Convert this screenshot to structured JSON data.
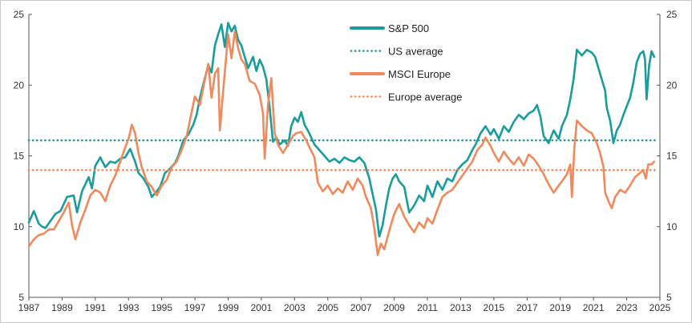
{
  "chart_data": {
    "type": "line",
    "title": "",
    "xlabel": "",
    "ylabel": "",
    "xlim": [
      1987,
      2025
    ],
    "ylim": [
      5,
      25
    ],
    "y_ticks": [
      "5",
      "10",
      "15",
      "20",
      "25"
    ],
    "x_ticks": [
      "1987",
      "1989",
      "1991",
      "1993",
      "1995",
      "1997",
      "1999",
      "2001",
      "2003",
      "2005",
      "2007",
      "2009",
      "2011",
      "2013",
      "2015",
      "2017",
      "2019",
      "2021",
      "2023",
      "2025"
    ],
    "grid": false,
    "legend_position": "top-center",
    "series": [
      {
        "name": "S&P 500",
        "color": "#1a9c9c",
        "style": "solid",
        "points": [
          [
            1987.0,
            10.3
          ],
          [
            1987.3,
            11.1
          ],
          [
            1987.6,
            10.2
          ],
          [
            1987.8,
            10.0
          ],
          [
            1988.0,
            9.9
          ],
          [
            1988.3,
            10.4
          ],
          [
            1988.6,
            10.9
          ],
          [
            1988.9,
            11.1
          ],
          [
            1989.3,
            12.1
          ],
          [
            1989.7,
            12.2
          ],
          [
            1989.9,
            11.0
          ],
          [
            1990.2,
            12.5
          ],
          [
            1990.6,
            13.5
          ],
          [
            1990.8,
            12.7
          ],
          [
            1991.0,
            14.3
          ],
          [
            1991.3,
            14.9
          ],
          [
            1991.6,
            14.2
          ],
          [
            1991.9,
            14.6
          ],
          [
            1992.2,
            14.5
          ],
          [
            1992.5,
            14.8
          ],
          [
            1992.8,
            14.9
          ],
          [
            1993.1,
            15.5
          ],
          [
            1993.4,
            14.6
          ],
          [
            1993.6,
            13.8
          ],
          [
            1993.9,
            13.4
          ],
          [
            1994.2,
            12.8
          ],
          [
            1994.4,
            12.1
          ],
          [
            1994.7,
            12.5
          ],
          [
            1994.9,
            12.8
          ],
          [
            1995.2,
            13.8
          ],
          [
            1995.5,
            14.1
          ],
          [
            1995.8,
            14.5
          ],
          [
            1996.0,
            15.0
          ],
          [
            1996.3,
            16.1
          ],
          [
            1996.6,
            16.5
          ],
          [
            1996.9,
            17.2
          ],
          [
            1997.1,
            17.9
          ],
          [
            1997.3,
            19.1
          ],
          [
            1997.6,
            20.5
          ],
          [
            1997.8,
            21.4
          ],
          [
            1998.0,
            20.9
          ],
          [
            1998.2,
            22.8
          ],
          [
            1998.4,
            23.6
          ],
          [
            1998.6,
            24.3
          ],
          [
            1998.8,
            22.7
          ],
          [
            1999.0,
            24.4
          ],
          [
            1999.2,
            23.8
          ],
          [
            1999.4,
            24.2
          ],
          [
            1999.6,
            23.2
          ],
          [
            1999.8,
            22.8
          ],
          [
            2000.0,
            22.0
          ],
          [
            2000.2,
            21.2
          ],
          [
            2000.5,
            22.0
          ],
          [
            2000.7,
            21.0
          ],
          [
            2000.9,
            21.8
          ],
          [
            2001.1,
            21.3
          ],
          [
            2001.3,
            20.4
          ],
          [
            2001.5,
            18.4
          ],
          [
            2001.7,
            16.0
          ],
          [
            2001.9,
            16.3
          ],
          [
            2002.1,
            15.8
          ],
          [
            2002.4,
            16.1
          ],
          [
            2002.6,
            15.7
          ],
          [
            2002.8,
            17.1
          ],
          [
            2003.0,
            17.7
          ],
          [
            2003.2,
            17.4
          ],
          [
            2003.4,
            18.1
          ],
          [
            2003.6,
            17.2
          ],
          [
            2003.8,
            16.8
          ],
          [
            2004.0,
            16.3
          ],
          [
            2004.2,
            15.8
          ],
          [
            2004.5,
            15.4
          ],
          [
            2004.8,
            15.0
          ],
          [
            2005.1,
            14.6
          ],
          [
            2005.4,
            14.8
          ],
          [
            2005.7,
            14.5
          ],
          [
            2006.0,
            14.9
          ],
          [
            2006.3,
            14.7
          ],
          [
            2006.6,
            14.6
          ],
          [
            2006.9,
            14.9
          ],
          [
            2007.2,
            14.5
          ],
          [
            2007.5,
            13.4
          ],
          [
            2007.7,
            12.3
          ],
          [
            2007.9,
            11.2
          ],
          [
            2008.1,
            9.3
          ],
          [
            2008.3,
            10.1
          ],
          [
            2008.5,
            11.5
          ],
          [
            2008.7,
            12.7
          ],
          [
            2008.9,
            13.4
          ],
          [
            2009.1,
            13.7
          ],
          [
            2009.3,
            13.2
          ],
          [
            2009.6,
            12.8
          ],
          [
            2009.9,
            11.0
          ],
          [
            2010.2,
            11.5
          ],
          [
            2010.5,
            12.2
          ],
          [
            2010.8,
            11.8
          ],
          [
            2011.0,
            12.9
          ],
          [
            2011.3,
            12.1
          ],
          [
            2011.6,
            13.2
          ],
          [
            2011.9,
            12.6
          ],
          [
            2012.2,
            13.4
          ],
          [
            2012.5,
            13.2
          ],
          [
            2012.8,
            14.0
          ],
          [
            2013.1,
            14.4
          ],
          [
            2013.4,
            14.7
          ],
          [
            2013.7,
            15.4
          ],
          [
            2013.9,
            15.8
          ],
          [
            2014.2,
            16.6
          ],
          [
            2014.5,
            17.1
          ],
          [
            2014.8,
            16.5
          ],
          [
            2015.0,
            16.9
          ],
          [
            2015.3,
            16.2
          ],
          [
            2015.6,
            17.1
          ],
          [
            2015.9,
            16.7
          ],
          [
            2016.2,
            17.4
          ],
          [
            2016.5,
            17.9
          ],
          [
            2016.8,
            17.6
          ],
          [
            2017.1,
            18.0
          ],
          [
            2017.4,
            18.2
          ],
          [
            2017.6,
            18.6
          ],
          [
            2017.8,
            17.8
          ],
          [
            2018.0,
            16.4
          ],
          [
            2018.3,
            15.9
          ],
          [
            2018.6,
            16.8
          ],
          [
            2018.9,
            16.2
          ],
          [
            2019.1,
            17.1
          ],
          [
            2019.4,
            17.9
          ],
          [
            2019.6,
            19.0
          ],
          [
            2019.8,
            20.4
          ],
          [
            2020.0,
            22.5
          ],
          [
            2020.3,
            22.1
          ],
          [
            2020.6,
            22.5
          ],
          [
            2020.9,
            22.3
          ],
          [
            2021.1,
            22.0
          ],
          [
            2021.4,
            20.8
          ],
          [
            2021.7,
            19.6
          ],
          [
            2021.8,
            18.4
          ],
          [
            2022.0,
            17.5
          ],
          [
            2022.2,
            15.9
          ],
          [
            2022.4,
            16.8
          ],
          [
            2022.6,
            17.2
          ],
          [
            2022.8,
            17.9
          ],
          [
            2023.0,
            18.5
          ],
          [
            2023.2,
            19.1
          ],
          [
            2023.4,
            20.2
          ],
          [
            2023.6,
            21.6
          ],
          [
            2023.8,
            22.2
          ],
          [
            2024.0,
            22.4
          ],
          [
            2024.1,
            21.8
          ],
          [
            2024.2,
            19.0
          ],
          [
            2024.35,
            21.4
          ],
          [
            2024.5,
            22.4
          ],
          [
            2024.65,
            22.0
          ]
        ]
      },
      {
        "name": "US average",
        "color": "#1a9c9c",
        "style": "dotted",
        "points": [
          [
            1987.0,
            16.1
          ],
          [
            2024.7,
            16.1
          ]
        ]
      },
      {
        "name": "MSCI Europe",
        "color": "#f08a5d",
        "style": "solid",
        "points": [
          [
            1987.0,
            8.6
          ],
          [
            1987.3,
            9.1
          ],
          [
            1987.6,
            9.4
          ],
          [
            1987.9,
            9.5
          ],
          [
            1988.2,
            9.8
          ],
          [
            1988.5,
            9.8
          ],
          [
            1988.8,
            10.4
          ],
          [
            1989.1,
            11.0
          ],
          [
            1989.4,
            11.7
          ],
          [
            1989.6,
            10.1
          ],
          [
            1989.8,
            9.1
          ],
          [
            1990.1,
            10.3
          ],
          [
            1990.4,
            11.2
          ],
          [
            1990.7,
            12.2
          ],
          [
            1991.0,
            12.6
          ],
          [
            1991.3,
            12.4
          ],
          [
            1991.6,
            11.8
          ],
          [
            1991.9,
            12.9
          ],
          [
            1992.2,
            13.6
          ],
          [
            1992.5,
            14.6
          ],
          [
            1992.8,
            15.6
          ],
          [
            1993.0,
            16.2
          ],
          [
            1993.2,
            17.2
          ],
          [
            1993.4,
            16.6
          ],
          [
            1993.6,
            15.2
          ],
          [
            1993.8,
            14.2
          ],
          [
            1994.1,
            13.2
          ],
          [
            1994.4,
            12.8
          ],
          [
            1994.7,
            12.2
          ],
          [
            1995.0,
            12.9
          ],
          [
            1995.3,
            13.3
          ],
          [
            1995.6,
            14.2
          ],
          [
            1995.9,
            14.6
          ],
          [
            1996.2,
            15.4
          ],
          [
            1996.5,
            16.4
          ],
          [
            1996.8,
            18.1
          ],
          [
            1997.0,
            19.2
          ],
          [
            1997.3,
            18.6
          ],
          [
            1997.6,
            20.4
          ],
          [
            1997.8,
            21.5
          ],
          [
            1998.0,
            19.1
          ],
          [
            1998.2,
            20.8
          ],
          [
            1998.4,
            21.2
          ],
          [
            1998.5,
            16.8
          ],
          [
            1998.7,
            19.6
          ],
          [
            1999.0,
            23.6
          ],
          [
            1999.2,
            21.9
          ],
          [
            1999.4,
            23.8
          ],
          [
            1999.6,
            22.6
          ],
          [
            1999.8,
            21.8
          ],
          [
            2000.0,
            21.5
          ],
          [
            2000.3,
            20.3
          ],
          [
            2000.6,
            20.1
          ],
          [
            2000.9,
            19.3
          ],
          [
            2001.1,
            18.0
          ],
          [
            2001.2,
            14.8
          ],
          [
            2001.4,
            18.6
          ],
          [
            2001.6,
            20.5
          ],
          [
            2001.8,
            16.6
          ],
          [
            2002.0,
            15.8
          ],
          [
            2002.3,
            15.2
          ],
          [
            2002.6,
            15.8
          ],
          [
            2002.9,
            16.4
          ],
          [
            2003.1,
            16.6
          ],
          [
            2003.4,
            16.7
          ],
          [
            2003.7,
            16.1
          ],
          [
            2003.9,
            15.6
          ],
          [
            2004.2,
            14.9
          ],
          [
            2004.4,
            13.1
          ],
          [
            2004.7,
            12.5
          ],
          [
            2005.0,
            12.9
          ],
          [
            2005.3,
            12.3
          ],
          [
            2005.6,
            12.7
          ],
          [
            2005.9,
            12.4
          ],
          [
            2006.2,
            13.2
          ],
          [
            2006.5,
            12.6
          ],
          [
            2006.8,
            13.4
          ],
          [
            2007.1,
            12.9
          ],
          [
            2007.3,
            12.1
          ],
          [
            2007.6,
            11.3
          ],
          [
            2007.8,
            9.9
          ],
          [
            2008.0,
            8.0
          ],
          [
            2008.2,
            8.8
          ],
          [
            2008.4,
            8.4
          ],
          [
            2008.7,
            9.7
          ],
          [
            2009.0,
            10.9
          ],
          [
            2009.3,
            11.6
          ],
          [
            2009.6,
            10.7
          ],
          [
            2009.9,
            10.1
          ],
          [
            2010.2,
            9.6
          ],
          [
            2010.5,
            10.3
          ],
          [
            2010.8,
            9.9
          ],
          [
            2011.0,
            10.6
          ],
          [
            2011.3,
            10.2
          ],
          [
            2011.6,
            11.2
          ],
          [
            2011.9,
            12.1
          ],
          [
            2012.2,
            12.4
          ],
          [
            2012.5,
            12.6
          ],
          [
            2012.8,
            13.1
          ],
          [
            2013.1,
            13.6
          ],
          [
            2013.4,
            14.1
          ],
          [
            2013.7,
            14.6
          ],
          [
            2014.0,
            15.4
          ],
          [
            2014.3,
            15.8
          ],
          [
            2014.5,
            16.3
          ],
          [
            2014.8,
            15.7
          ],
          [
            2015.0,
            15.2
          ],
          [
            2015.3,
            14.6
          ],
          [
            2015.6,
            15.3
          ],
          [
            2015.9,
            14.8
          ],
          [
            2016.2,
            14.4
          ],
          [
            2016.5,
            14.9
          ],
          [
            2016.8,
            14.3
          ],
          [
            2017.1,
            15.1
          ],
          [
            2017.4,
            14.8
          ],
          [
            2017.7,
            14.3
          ],
          [
            2018.0,
            13.7
          ],
          [
            2018.3,
            13.0
          ],
          [
            2018.6,
            12.4
          ],
          [
            2018.9,
            12.9
          ],
          [
            2019.1,
            13.2
          ],
          [
            2019.4,
            13.7
          ],
          [
            2019.6,
            14.4
          ],
          [
            2019.7,
            12.1
          ],
          [
            2019.85,
            15.6
          ],
          [
            2020.0,
            17.5
          ],
          [
            2020.3,
            17.1
          ],
          [
            2020.6,
            16.8
          ],
          [
            2020.9,
            16.6
          ],
          [
            2021.2,
            15.9
          ],
          [
            2021.4,
            15.2
          ],
          [
            2021.6,
            14.2
          ],
          [
            2021.7,
            12.4
          ],
          [
            2021.9,
            11.8
          ],
          [
            2022.1,
            11.3
          ],
          [
            2022.3,
            12.1
          ],
          [
            2022.6,
            12.6
          ],
          [
            2022.9,
            12.4
          ],
          [
            2023.2,
            12.9
          ],
          [
            2023.5,
            13.5
          ],
          [
            2023.8,
            13.8
          ],
          [
            2024.0,
            14.0
          ],
          [
            2024.15,
            13.4
          ],
          [
            2024.3,
            14.4
          ],
          [
            2024.5,
            14.4
          ],
          [
            2024.65,
            14.6
          ]
        ]
      },
      {
        "name": "Europe average",
        "color": "#f08a5d",
        "style": "dotted",
        "points": [
          [
            1987.0,
            14.0
          ],
          [
            2024.7,
            14.0
          ]
        ]
      }
    ]
  }
}
